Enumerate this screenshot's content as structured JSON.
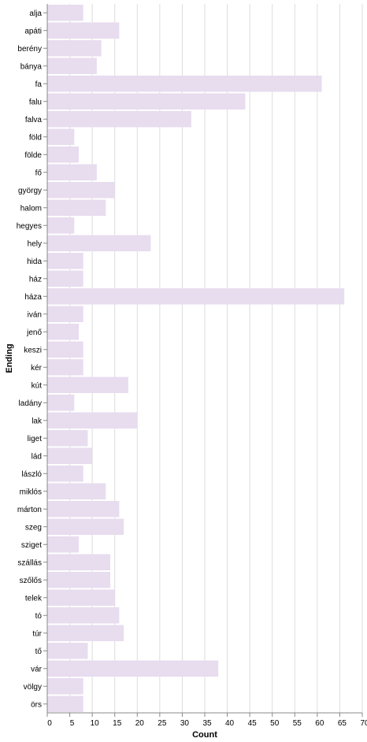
{
  "chart_data": {
    "type": "bar",
    "orientation": "horizontal",
    "xlabel": "Count",
    "ylabel": "Ending",
    "xlim": [
      0,
      70
    ],
    "x_ticks": [
      0,
      5,
      10,
      15,
      20,
      25,
      30,
      35,
      40,
      45,
      50,
      55,
      60,
      65,
      70
    ],
    "grid": true,
    "bar_color": "#e8dcef",
    "categories": [
      "alja",
      "apáti",
      "berény",
      "bánya",
      "fa",
      "falu",
      "falva",
      "föld",
      "földe",
      "fő",
      "györgy",
      "halom",
      "hegyes",
      "hely",
      "hida",
      "ház",
      "háza",
      "iván",
      "jenő",
      "keszi",
      "kér",
      "kút",
      "ladány",
      "lak",
      "liget",
      "lád",
      "lászló",
      "miklós",
      "márton",
      "szeg",
      "sziget",
      "szállás",
      "szőlős",
      "telek",
      "tó",
      "túr",
      "tő",
      "vár",
      "völgy",
      "örs"
    ],
    "values": [
      8,
      16,
      12,
      11,
      61,
      44,
      32,
      6,
      7,
      11,
      15,
      13,
      6,
      23,
      8,
      8,
      66,
      8,
      7,
      8,
      8,
      18,
      6,
      20,
      9,
      10,
      8,
      13,
      16,
      17,
      7,
      14,
      14,
      15,
      16,
      17,
      9,
      38,
      8,
      8
    ]
  }
}
